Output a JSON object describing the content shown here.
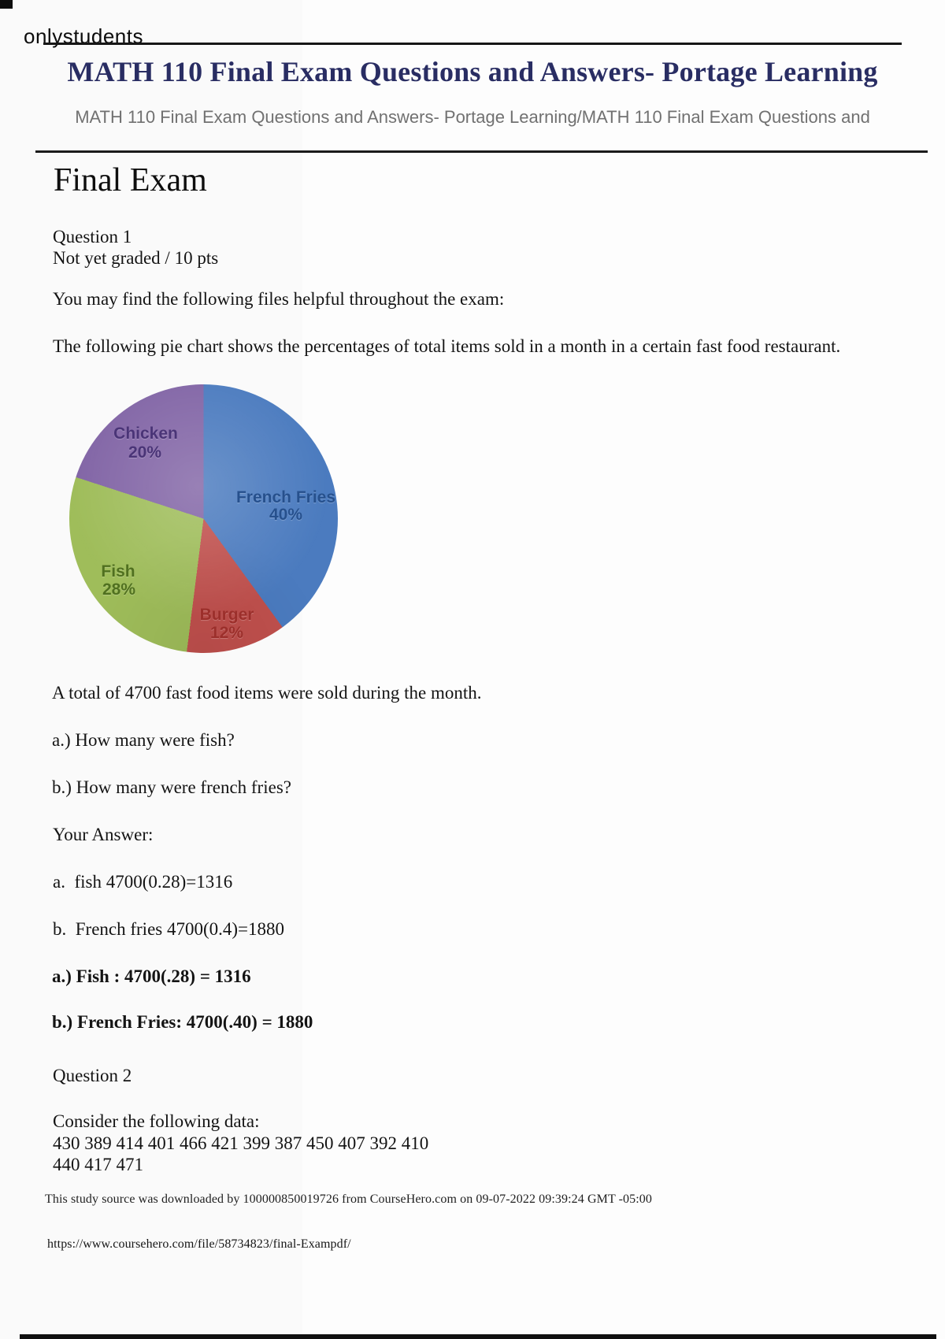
{
  "page": {
    "watermark": "onlystudents",
    "title": "MATH 110 Final Exam Questions and Answers- Portage Learning",
    "subtitle": "MATH 110 Final Exam Questions and Answers- Portage Learning/MATH 110 Final Exam Questions and",
    "section_heading": "Final Exam"
  },
  "question1": {
    "label": "Question 1",
    "grade_status": "Not yet graded / 10 pts",
    "intro": "You may find the following files helpful throughout the exam:",
    "chart_caption": "The following pie chart shows the percentages of total items sold in a month in a certain fast food restaurant.",
    "total_line": "A total of 4700 fast food items were sold during the month.",
    "part_a": "a.) How many were fish?",
    "part_b": "b.) How many were french fries?",
    "your_answer_label": "Your Answer:",
    "answer_a": "a.  fish 4700(0.28)=1316",
    "answer_b": "b.  French fries 4700(0.4)=1880",
    "answer_a_bold": "a.) Fish : 4700(.28) = 1316",
    "answer_b_bold": "b.) French Fries: 4700(.40) = 1880"
  },
  "question2": {
    "label": "Question 2",
    "intro": "Consider the following data:",
    "data_line1": "430 389 414 401 466 421 399 387 450 407 392 410",
    "data_line2": "440 417 471"
  },
  "chart_data": {
    "type": "pie",
    "title": "",
    "start_angle_deg": 0,
    "direction": "clockwise",
    "total_items": 4700,
    "slices": [
      {
        "label": "French Fries",
        "value": 40,
        "pct": "40%",
        "color": "#4b7bbf",
        "label_color": "#26508d"
      },
      {
        "label": "Burger",
        "value": 12,
        "pct": "12%",
        "color": "#c0504d",
        "label_color": "#9c2f2b"
      },
      {
        "label": "Fish",
        "value": 28,
        "pct": "28%",
        "color": "#9fbd5a",
        "label_color": "#50701f"
      },
      {
        "label": "Chicken",
        "value": 20,
        "pct": "20%",
        "color": "#8265a6",
        "label_color": "#4a3477"
      }
    ]
  },
  "footer": {
    "source_line": "This study source was downloaded by 100000850019726 from CourseHero.com on 09-07-2022 09:39:24 GMT -05:00",
    "url": "https://www.coursehero.com/file/58734823/final-Exampdf/"
  }
}
